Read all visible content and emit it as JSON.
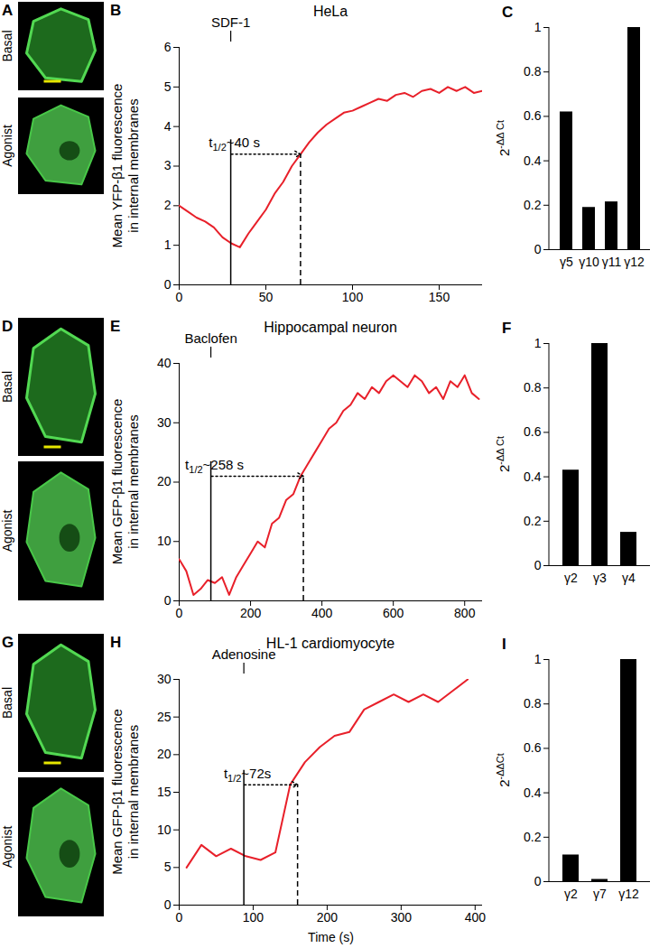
{
  "chart_data": [
    {
      "panel": "B",
      "type": "line",
      "title": "HeLa",
      "y_label": "Mean YFP-β1 fluorescence in internal membranes",
      "xlim": [
        0,
        175
      ],
      "xticks": [
        0,
        50,
        100,
        150
      ],
      "ylim": [
        0,
        6
      ],
      "yticks": [
        0,
        1,
        2,
        3,
        4,
        5,
        6
      ],
      "color": "#e8202a",
      "x": [
        0,
        5,
        10,
        15,
        20,
        25,
        30,
        35,
        40,
        45,
        50,
        55,
        60,
        65,
        70,
        75,
        80,
        85,
        90,
        95,
        100,
        105,
        110,
        115,
        120,
        125,
        130,
        135,
        140,
        145,
        150,
        155,
        160,
        165,
        170,
        175
      ],
      "values": [
        2.0,
        1.85,
        1.7,
        1.6,
        1.45,
        1.2,
        1.05,
        0.95,
        1.3,
        1.6,
        1.9,
        2.3,
        2.6,
        3.0,
        3.3,
        3.6,
        3.85,
        4.05,
        4.2,
        4.35,
        4.4,
        4.5,
        4.6,
        4.7,
        4.65,
        4.8,
        4.85,
        4.75,
        4.9,
        4.95,
        4.85,
        5.0,
        4.9,
        5.0,
        4.85,
        4.9
      ],
      "annotations": {
        "agonist": "SDF-1",
        "agonist_x": 30,
        "half_time_x": 70,
        "half_time": {
          "base": "t",
          "subscript": "1/2",
          "text": "~40 s"
        }
      }
    },
    {
      "panel": "C",
      "type": "bar",
      "y_label": {
        "base": "2",
        "superscript": "-ΔΔ Ct"
      },
      "categories": [
        "γ5",
        "γ10",
        "γ11",
        "γ12"
      ],
      "values": [
        0.62,
        0.19,
        0.215,
        1.0
      ],
      "color": "#000000",
      "ylim": [
        0,
        1
      ],
      "yticks": [
        0,
        0.2,
        0.4,
        0.6,
        0.8,
        1
      ]
    },
    {
      "panel": "E",
      "type": "line",
      "title": "Hippocampal neuron",
      "y_label": "Mean GFP-β1 fluorescence in internal membranes",
      "xlim": [
        0,
        850
      ],
      "xticks": [
        0,
        200,
        400,
        600,
        800
      ],
      "ylim": [
        0,
        40
      ],
      "yticks": [
        0,
        10,
        20,
        30,
        40
      ],
      "color": "#e8202a",
      "x": [
        0,
        20,
        40,
        60,
        80,
        100,
        120,
        140,
        160,
        180,
        200,
        220,
        240,
        260,
        280,
        300,
        320,
        340,
        360,
        380,
        400,
        420,
        440,
        460,
        480,
        500,
        520,
        540,
        560,
        580,
        600,
        620,
        640,
        660,
        680,
        700,
        720,
        740,
        760,
        780,
        800,
        820,
        840
      ],
      "values": [
        7,
        5,
        1,
        2,
        3.5,
        3,
        4,
        1,
        4,
        6,
        8,
        10,
        9,
        13,
        14,
        17,
        18,
        21,
        23,
        25,
        27,
        29,
        30,
        32,
        33,
        35,
        34,
        36,
        35,
        37,
        38,
        37,
        36,
        38,
        37,
        35,
        36,
        34,
        37,
        36,
        38,
        35,
        34
      ],
      "annotations": {
        "agonist": "Baclofen",
        "agonist_x": 90,
        "half_time_x": 348,
        "half_time": {
          "base": "t",
          "subscript": "1/2",
          "text": "~258 s"
        }
      }
    },
    {
      "panel": "F",
      "type": "bar",
      "y_label": {
        "base": "2",
        "superscript": "-ΔΔ Ct"
      },
      "categories": [
        "γ2",
        "γ3",
        "γ4"
      ],
      "values": [
        0.43,
        1.0,
        0.15
      ],
      "color": "#000000",
      "ylim": [
        0,
        1
      ],
      "yticks": [
        0,
        0.2,
        0.4,
        0.6,
        0.8,
        1
      ]
    },
    {
      "panel": "H",
      "type": "line",
      "title": "HL-1 cardiomyocyte",
      "y_label": "Mean GFP-β1 fluorescence in internal membranes",
      "x_label": "Time (s)",
      "xlim": [
        0,
        410
      ],
      "xticks": [
        0,
        100,
        200,
        300,
        400
      ],
      "ylim": [
        0,
        30
      ],
      "yticks": [
        0,
        5,
        10,
        15,
        20,
        25,
        30
      ],
      "color": "#e8202a",
      "x": [
        10,
        30,
        50,
        70,
        90,
        110,
        130,
        150,
        170,
        190,
        210,
        230,
        250,
        270,
        290,
        310,
        330,
        350,
        370,
        390
      ],
      "values": [
        5,
        8,
        6.5,
        7.5,
        6.5,
        6,
        7,
        16,
        19,
        21,
        22.5,
        23,
        26,
        27,
        28,
        27,
        28,
        27,
        28.5,
        30
      ],
      "annotations": {
        "agonist": "Adenosine",
        "agonist_x": 88,
        "half_time_x": 160,
        "half_time": {
          "base": "t",
          "subscript": "1/2",
          "text": "~72s"
        }
      }
    },
    {
      "panel": "I",
      "type": "bar",
      "y_label": {
        "base": "2",
        "superscript": "-ΔΔCt"
      },
      "categories": [
        "γ2",
        "γ7",
        "γ12"
      ],
      "values": [
        0.12,
        0.01,
        1.0
      ],
      "color": "#000000",
      "ylim": [
        0,
        1
      ],
      "yticks": [
        0,
        0.2,
        0.4,
        0.6,
        0.8,
        1
      ]
    }
  ],
  "images": [
    {
      "panel": "A",
      "labels": [
        "Basal",
        "Agonist"
      ]
    },
    {
      "panel": "D",
      "labels": [
        "Basal",
        "Agonist"
      ]
    },
    {
      "panel": "G",
      "labels": [
        "Basal",
        "Agonist"
      ]
    }
  ]
}
